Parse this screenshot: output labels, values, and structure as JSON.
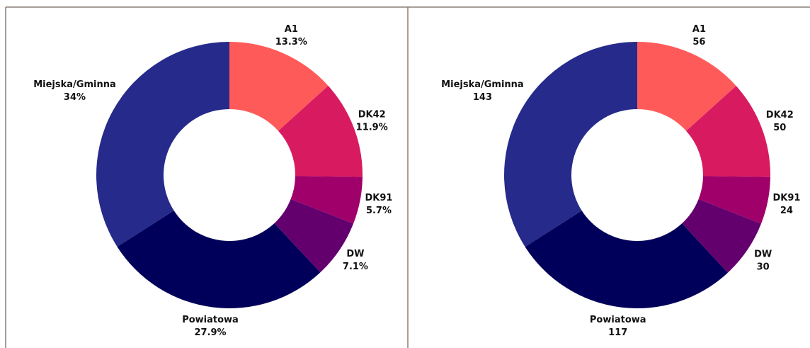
{
  "chart_data": [
    {
      "type": "pie",
      "categories": [
        "A1",
        "DK42",
        "DK91",
        "DW",
        "Powiatowa",
        "Miejska/Gminna"
      ],
      "values": [
        13.3,
        11.9,
        5.7,
        7.1,
        27.9,
        34
      ],
      "value_labels": [
        "13.3%",
        "11.9%",
        "5.7%",
        "7.1%",
        "27.9%",
        "34%"
      ],
      "colors": [
        "#ff5a5a",
        "#d81b60",
        "#a0006a",
        "#64006e",
        "#00005a",
        "#262a8a"
      ]
    },
    {
      "type": "pie",
      "categories": [
        "A1",
        "DK42",
        "DK91",
        "DW",
        "Powiatowa",
        "Miejska/Gminna"
      ],
      "values": [
        56,
        50,
        24,
        30,
        117,
        143
      ],
      "colors": [
        "#ff5a5a",
        "#d81b60",
        "#a0006a",
        "#64006e",
        "#00005a",
        "#262a8a"
      ]
    }
  ]
}
